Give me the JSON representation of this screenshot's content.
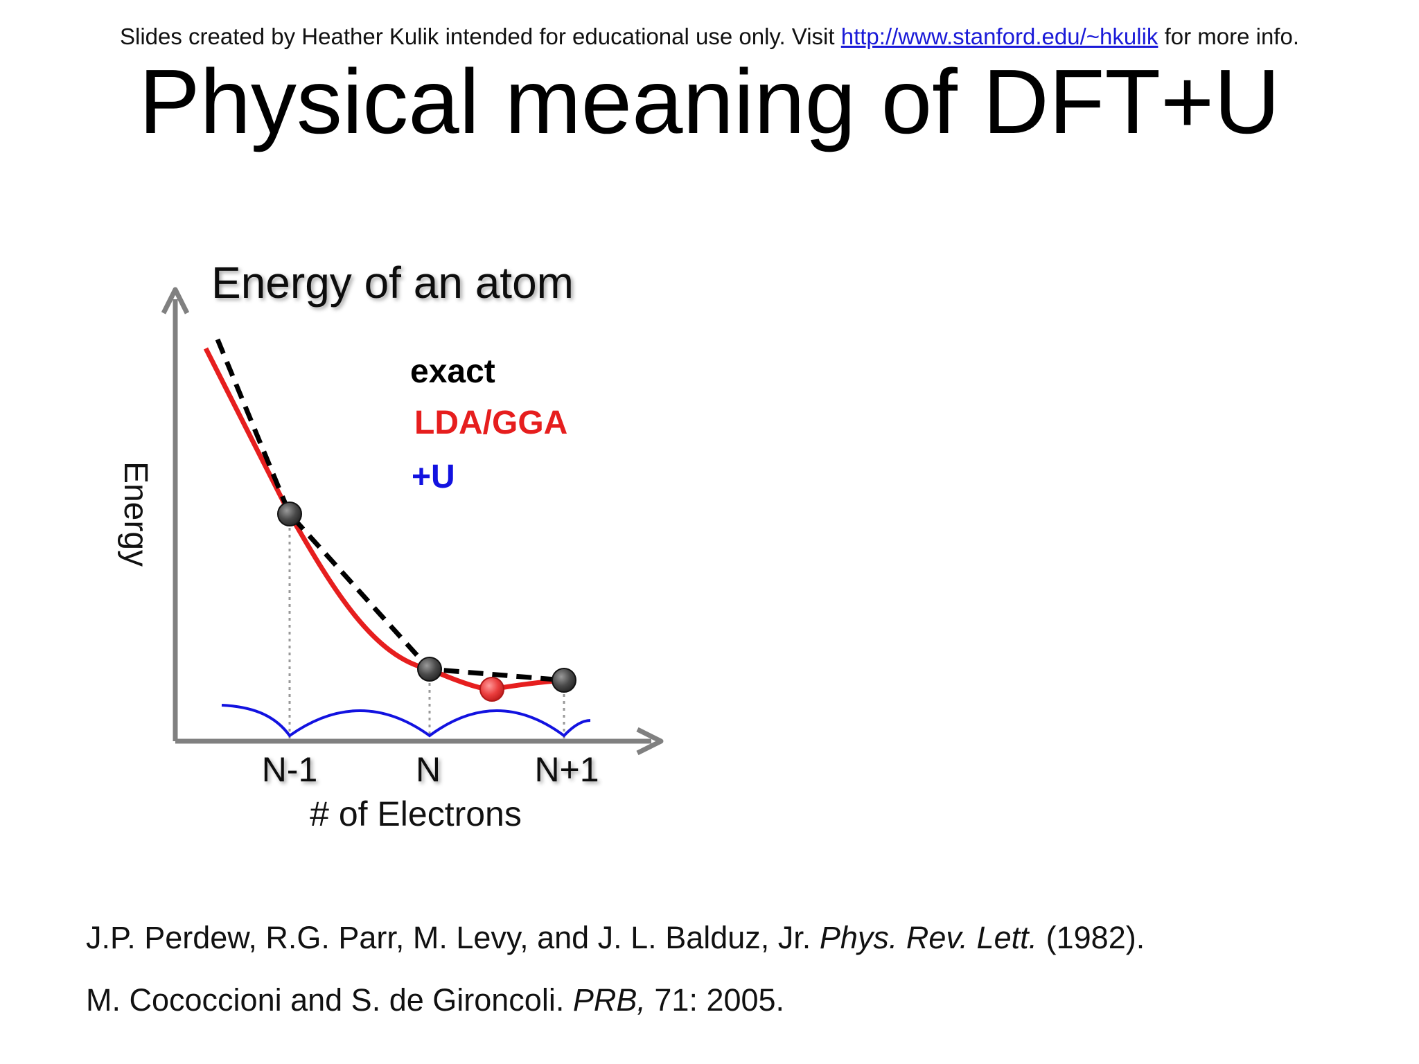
{
  "header": {
    "note_before": "Slides created by Heather Kulik intended for educational use only. Visit",
    "link_text": "http://www.stanford.edu/~hkulik",
    "note_after": "for more info."
  },
  "title": "Physical meaning of DFT+U",
  "figure": {
    "title": "Energy of an atom",
    "ylabel": "Energy",
    "xlabel": "# of Electrons",
    "ticks": [
      "N-1",
      "N",
      "N+1"
    ],
    "legend": [
      {
        "label": "exact",
        "color": "#000000"
      },
      {
        "label": "LDA/GGA",
        "color": "#e61e1e"
      },
      {
        "label": "+U",
        "color": "#1212e0"
      }
    ],
    "colors": {
      "axis": "#808080",
      "exact": "#000000",
      "lda": "#e61e1e",
      "plus_u": "#1212e0",
      "marker": "#555555",
      "lda_min_marker": "#e84a4a"
    }
  },
  "references": [
    {
      "authors": "J.P. Perdew, R.G. Parr, M. Levy, and J. L. Balduz, Jr.",
      "journal": "Phys. Rev. Lett.",
      "details": "(1982)."
    },
    {
      "authors": "M. Cococcioni and S. de Gironcoli.",
      "journal": "PRB,",
      "details": "71: 2005."
    }
  ]
}
